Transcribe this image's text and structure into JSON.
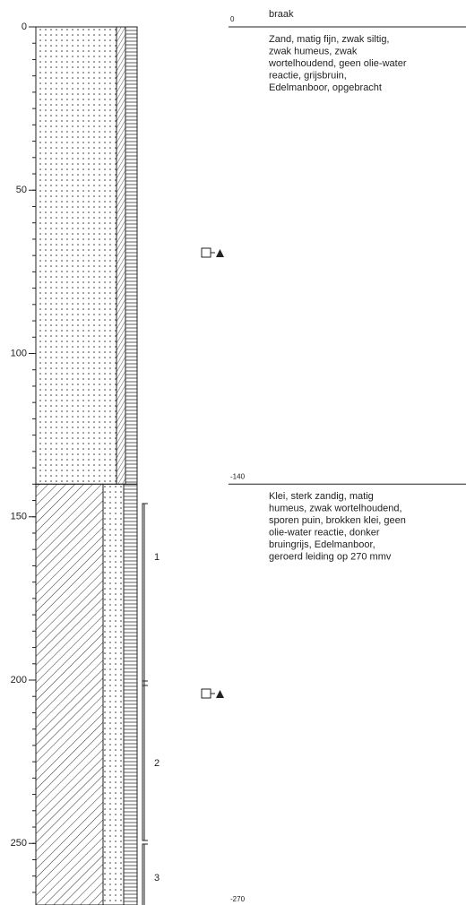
{
  "depth_axis": {
    "ticks": [
      0,
      50,
      100,
      150,
      200,
      250
    ]
  },
  "layers": [
    {
      "top": 0,
      "name": "braak",
      "description": [
        "Zand, matig fijn, zwak siltig,",
        "zwak humeus, zwak",
        "wortelhoudend, geen olie-water",
        "reactie, grijsbruin,",
        "Edelmanboor, opgebracht"
      ]
    },
    {
      "top": -140,
      "description": [
        "Klei, sterk zandig, matig",
        "humeus, zwak wortelhoudend,",
        "sporen puin, brokken klei, geen",
        "olie-water reactie, donker",
        "bruingrijs, Edelmanboor,",
        "geroerd leiding op 270 mmv"
      ]
    }
  ],
  "bottom": -270,
  "samples": [
    "1",
    "2",
    "3"
  ]
}
